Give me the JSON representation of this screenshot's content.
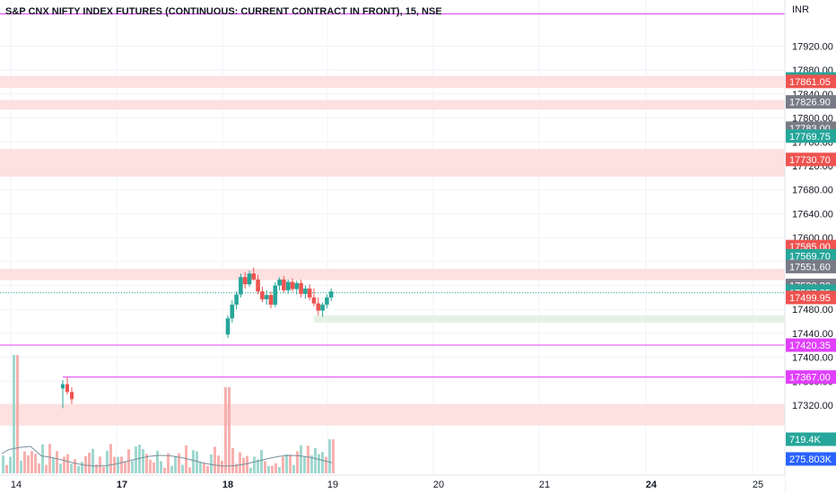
{
  "header": {
    "title": "S&P CNX NIFTY INDEX FUTURES (CONTINUOUS: CURRENT CONTRACT IN FRONT), 15, NSE",
    "currency": "INR"
  },
  "colors": {
    "up": "#26a69a",
    "down": "#ef5350",
    "zone": "#fde0e0",
    "support_zone": "#e3f2e4",
    "hline": "#e040fb",
    "grey_label": "#787b86",
    "volume_ma": "#9fa8da"
  },
  "chart_data": {
    "type": "candlestick",
    "title": "S&P CNX NIFTY INDEX FUTURES (CONTINUOUS: CURRENT CONTRACT IN FRONT), 15, NSE",
    "currency": "INR",
    "ylim": [
      17285,
      17975
    ],
    "y_ticks": [
      "17920.00",
      "17880.00",
      "17840.00",
      "17800.00",
      "17760.00",
      "17720.00",
      "17680.00",
      "17640.00",
      "17600.00",
      "17560.00",
      "17520.00",
      "17480.00",
      "17440.00",
      "17400.00",
      "17360.00",
      "17320.00"
    ],
    "x_ticks": [
      "14",
      "17",
      "18",
      "19",
      "20",
      "21",
      "24",
      "25"
    ],
    "x_ticks_bold": [
      "17",
      "18",
      "24"
    ],
    "last_price": 17507.85,
    "candles_day18": [
      {
        "o": 17438,
        "h": 17470,
        "l": 17432,
        "c": 17465
      },
      {
        "o": 17465,
        "h": 17495,
        "l": 17458,
        "c": 17488
      },
      {
        "o": 17488,
        "h": 17510,
        "l": 17480,
        "c": 17505
      },
      {
        "o": 17505,
        "h": 17540,
        "l": 17500,
        "c": 17534
      },
      {
        "o": 17534,
        "h": 17542,
        "l": 17515,
        "c": 17522
      },
      {
        "o": 17522,
        "h": 17545,
        "l": 17518,
        "c": 17540
      },
      {
        "o": 17540,
        "h": 17550,
        "l": 17528,
        "c": 17530
      },
      {
        "o": 17530,
        "h": 17538,
        "l": 17505,
        "c": 17510
      },
      {
        "o": 17510,
        "h": 17518,
        "l": 17492,
        "c": 17497
      },
      {
        "o": 17497,
        "h": 17512,
        "l": 17488,
        "c": 17504
      },
      {
        "o": 17504,
        "h": 17510,
        "l": 17482,
        "c": 17488
      },
      {
        "o": 17488,
        "h": 17525,
        "l": 17484,
        "c": 17520
      },
      {
        "o": 17520,
        "h": 17534,
        "l": 17512,
        "c": 17530
      },
      {
        "o": 17530,
        "h": 17536,
        "l": 17508,
        "c": 17512
      },
      {
        "o": 17512,
        "h": 17530,
        "l": 17506,
        "c": 17526
      },
      {
        "o": 17526,
        "h": 17532,
        "l": 17510,
        "c": 17514
      },
      {
        "o": 17514,
        "h": 17528,
        "l": 17505,
        "c": 17524
      },
      {
        "o": 17524,
        "h": 17530,
        "l": 17500,
        "c": 17506
      },
      {
        "o": 17506,
        "h": 17520,
        "l": 17498,
        "c": 17515
      },
      {
        "o": 17515,
        "h": 17522,
        "l": 17495,
        "c": 17500
      },
      {
        "o": 17500,
        "h": 17515,
        "l": 17485,
        "c": 17490
      },
      {
        "o": 17490,
        "h": 17500,
        "l": 17470,
        "c": 17478
      },
      {
        "o": 17478,
        "h": 17492,
        "l": 17468,
        "c": 17488
      },
      {
        "o": 17488,
        "h": 17505,
        "l": 17482,
        "c": 17500
      },
      {
        "o": 17500,
        "h": 17515,
        "l": 17494,
        "c": 17510
      }
    ],
    "day14_markers": [
      {
        "o": 17348,
        "h": 17362,
        "l": 17315,
        "c": 17355
      },
      {
        "o": 17355,
        "h": 17367,
        "l": 17338,
        "c": 17342
      },
      {
        "o": 17342,
        "h": 17350,
        "l": 17322,
        "c": 17330
      }
    ],
    "zones": [
      {
        "from": 17850,
        "to": 17870
      },
      {
        "from": 17814,
        "to": 17830
      },
      {
        "from": 17702,
        "to": 17748
      },
      {
        "from": 17529,
        "to": 17548
      },
      {
        "from": 17286,
        "to": 17322
      }
    ],
    "support_zone": {
      "from": 17458,
      "to": 17470
    },
    "hlines": [
      17974,
      17420.35,
      17367.0
    ],
    "short_hline": 17367.0,
    "price_labels": [
      {
        "value": "17865.25",
        "kind": "up"
      },
      {
        "value": "17861.05",
        "kind": "down"
      },
      {
        "value": "17826.90",
        "kind": "grey"
      },
      {
        "value": "17783.00",
        "kind": "grey"
      },
      {
        "value": "17769.75",
        "kind": "up"
      },
      {
        "value": "17730.70",
        "kind": "down"
      },
      {
        "value": "17585.00",
        "kind": "down"
      },
      {
        "value": "17569.70",
        "kind": "up"
      },
      {
        "value": "17551.60",
        "kind": "grey"
      },
      {
        "value": "17520.20",
        "kind": "grey"
      },
      {
        "value": "17510.45",
        "kind": "up"
      },
      {
        "value": "17507.85",
        "kind": "up"
      },
      {
        "value": "17499.95",
        "kind": "down"
      },
      {
        "value": "17420.35",
        "kind": "hline"
      },
      {
        "value": "17367.00",
        "kind": "hline"
      },
      {
        "value": "719.4K",
        "kind": "up"
      },
      {
        "value": "275.803K",
        "kind": "blue"
      }
    ],
    "volume": {
      "last": "719.4K",
      "ma": "275.803K"
    }
  }
}
